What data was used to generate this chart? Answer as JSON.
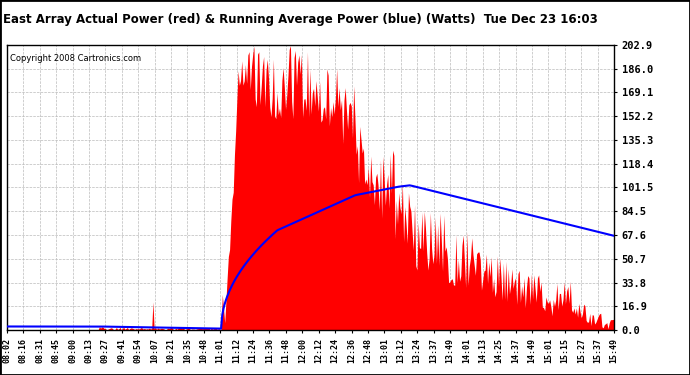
{
  "title": "East Array Actual Power (red) & Running Average Power (blue) (Watts)  Tue Dec 23 16:03",
  "copyright": "Copyright 2008 Cartronics.com",
  "y_max": 202.9,
  "y_min": 0.0,
  "y_ticks": [
    0.0,
    16.9,
    33.8,
    50.7,
    67.6,
    84.5,
    101.5,
    118.4,
    135.3,
    152.2,
    169.1,
    186.0,
    202.9
  ],
  "bar_color": "#FF0000",
  "avg_color": "#0000FF",
  "bg_color": "#FFFFFF",
  "grid_color": "#AAAAAA",
  "x_labels": [
    "08:02",
    "08:16",
    "08:31",
    "08:45",
    "09:00",
    "09:13",
    "09:27",
    "09:41",
    "09:54",
    "10:07",
    "10:21",
    "10:35",
    "10:48",
    "11:01",
    "11:12",
    "11:24",
    "11:36",
    "11:48",
    "12:00",
    "12:12",
    "12:24",
    "12:36",
    "12:48",
    "13:01",
    "13:12",
    "13:24",
    "13:37",
    "13:49",
    "14:01",
    "14:13",
    "14:25",
    "14:37",
    "14:49",
    "15:01",
    "15:15",
    "15:27",
    "15:37",
    "15:49"
  ]
}
